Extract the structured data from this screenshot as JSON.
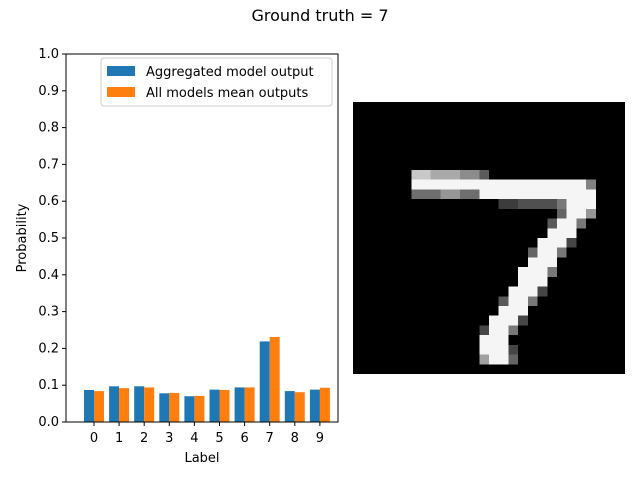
{
  "figure": {
    "title": "Ground truth = 7"
  },
  "chart_data": {
    "type": "bar",
    "title": "",
    "xlabel": "Label",
    "ylabel": "Probability",
    "ylim": [
      0,
      1.0
    ],
    "yticks": [
      "0.0",
      "0.1",
      "0.2",
      "0.3",
      "0.4",
      "0.5",
      "0.6",
      "0.7",
      "0.8",
      "0.9",
      "1.0"
    ],
    "categories": [
      "0",
      "1",
      "2",
      "3",
      "4",
      "5",
      "6",
      "7",
      "8",
      "9"
    ],
    "grid": false,
    "legend_position": "top-right",
    "series": [
      {
        "name": "Aggregated model output",
        "color": "#1f77b4",
        "values": [
          0.087,
          0.097,
          0.097,
          0.078,
          0.07,
          0.088,
          0.094,
          0.219,
          0.084,
          0.088
        ]
      },
      {
        "name": "All models mean outputs",
        "color": "#ff7f0e",
        "values": [
          0.084,
          0.092,
          0.094,
          0.079,
          0.071,
          0.087,
          0.094,
          0.231,
          0.081,
          0.093
        ]
      }
    ]
  },
  "image": {
    "description_label": "digit-image",
    "grid_size": 28,
    "pixels": [
      "............................",
      "............................",
      "............................",
      "............................",
      "............................",
      "............................",
      "............................",
      "......AABBBCCD..............",
      "......FFFFFFFFFFFFFFFFFFE...",
      "......GGGHHGGFFFFFFFFFFFF...",
      "...............IIJJJJKFFF...",
      ".....................LFFH...",
      "....................MFFK....",
      "....................FFF.....",
      "...................FFFN.....",
      "..................LFFK......",
      "..................FFF.......",
      ".................FFFK.......",
      ".................FFF........",
      "................FFFN........",
      "...............MFFK.........",
      "...............FFF..........",
      "..............FFFN..........",
      ".............NFFK...........",
      ".............FFF............",
      ".............FFFN...........",
      ".............OFFL...........",
      "............................"
    ],
    "palette": {
      ".": 0,
      "A": 200,
      "B": 170,
      "C": 140,
      "D": 90,
      "E": 130,
      "F": 245,
      "G": 110,
      "H": 150,
      "I": 60,
      "J": 80,
      "K": 120,
      "L": 100,
      "M": 90,
      "N": 70,
      "O": 160
    }
  }
}
